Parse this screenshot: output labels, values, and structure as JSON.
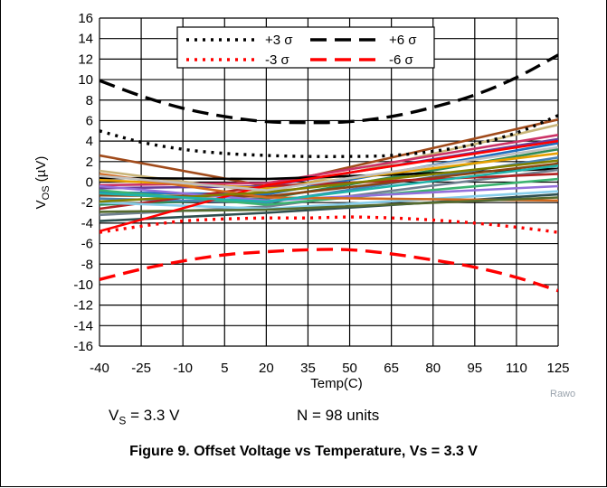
{
  "chart_data": {
    "type": "line",
    "xlabel": "Temp(C)",
    "ylabel": "V",
    "ylabel_sub": "OS",
    "ylabel_unit": " (µV)",
    "x_ticks": [
      -40,
      -25,
      -10,
      5,
      20,
      35,
      50,
      65,
      80,
      95,
      110,
      125
    ],
    "y_ticks": [
      16,
      14,
      12,
      10,
      8,
      6,
      4,
      2,
      0,
      -2,
      -4,
      -6,
      -8,
      -10,
      -12,
      -14,
      -16
    ],
    "xlim": [
      -40,
      125
    ],
    "ylim": [
      -16,
      16
    ],
    "grid": true,
    "legend_position": "top-center",
    "sigma_series": [
      {
        "name": "+3 σ",
        "color": "#000000",
        "style": "dotted",
        "points": [
          [
            -40,
            5.0
          ],
          [
            -25,
            3.9
          ],
          [
            -10,
            3.2
          ],
          [
            5,
            2.8
          ],
          [
            20,
            2.6
          ],
          [
            35,
            2.5
          ],
          [
            50,
            2.5
          ],
          [
            65,
            2.6
          ],
          [
            80,
            3.0
          ],
          [
            95,
            3.7
          ],
          [
            110,
            4.8
          ],
          [
            125,
            6.5
          ]
        ]
      },
      {
        "name": "+6 σ",
        "color": "#000000",
        "style": "dashed",
        "points": [
          [
            -40,
            9.9
          ],
          [
            -25,
            8.4
          ],
          [
            -10,
            7.2
          ],
          [
            5,
            6.4
          ],
          [
            20,
            5.9
          ],
          [
            35,
            5.8
          ],
          [
            50,
            5.9
          ],
          [
            65,
            6.4
          ],
          [
            80,
            7.3
          ],
          [
            95,
            8.5
          ],
          [
            110,
            10.2
          ],
          [
            125,
            12.4
          ]
        ]
      },
      {
        "name": "-3 σ",
        "color": "#ff0000",
        "style": "dotted",
        "points": [
          [
            -40,
            -4.9
          ],
          [
            -25,
            -4.3
          ],
          [
            -10,
            -3.8
          ],
          [
            5,
            -3.6
          ],
          [
            20,
            -3.5
          ],
          [
            35,
            -3.5
          ],
          [
            50,
            -3.4
          ],
          [
            65,
            -3.5
          ],
          [
            80,
            -3.7
          ],
          [
            95,
            -4.0
          ],
          [
            110,
            -4.4
          ],
          [
            125,
            -4.9
          ]
        ]
      },
      {
        "name": "-6 σ",
        "color": "#ff0000",
        "style": "dashed",
        "points": [
          [
            -40,
            -9.5
          ],
          [
            -25,
            -8.5
          ],
          [
            -10,
            -7.7
          ],
          [
            5,
            -7.1
          ],
          [
            20,
            -6.8
          ],
          [
            35,
            -6.6
          ],
          [
            50,
            -6.6
          ],
          [
            65,
            -7.0
          ],
          [
            80,
            -7.6
          ],
          [
            95,
            -8.3
          ],
          [
            110,
            -9.3
          ],
          [
            125,
            -10.6
          ]
        ]
      }
    ],
    "unit_series": [
      {
        "color": "#a04a1a",
        "points": [
          [
            -40,
            2.6
          ],
          [
            20,
            -0.4
          ],
          [
            125,
            6.1
          ]
        ]
      },
      {
        "color": "#c8b478",
        "points": [
          [
            -40,
            1.1
          ],
          [
            20,
            -1.0
          ],
          [
            125,
            5.6
          ]
        ]
      },
      {
        "color": "#cc3366",
        "points": [
          [
            -40,
            -0.3
          ],
          [
            20,
            -0.1
          ],
          [
            125,
            4.6
          ]
        ]
      },
      {
        "color": "#6a3d9a",
        "points": [
          [
            -40,
            -0.6
          ],
          [
            20,
            -0.4
          ],
          [
            125,
            4.2
          ]
        ]
      },
      {
        "color": "#1f6fbf",
        "points": [
          [
            -40,
            -1.0
          ],
          [
            20,
            -1.2
          ],
          [
            125,
            3.8
          ]
        ]
      },
      {
        "color": "#2e8b57",
        "points": [
          [
            -40,
            -2.2
          ],
          [
            20,
            -1.6
          ],
          [
            125,
            3.2
          ]
        ]
      },
      {
        "color": "#000000",
        "points": [
          [
            -40,
            0.4
          ],
          [
            20,
            0.3
          ],
          [
            125,
            1.3
          ]
        ]
      },
      {
        "color": "#e6a000",
        "points": [
          [
            -40,
            0.2
          ],
          [
            20,
            -0.6
          ],
          [
            125,
            2.8
          ]
        ]
      },
      {
        "color": "#4682b4",
        "points": [
          [
            -40,
            -1.6
          ],
          [
            20,
            -2.0
          ],
          [
            125,
            2.4
          ]
        ]
      },
      {
        "color": "#8b4513",
        "points": [
          [
            -40,
            -1.3
          ],
          [
            20,
            -1.4
          ],
          [
            125,
            1.8
          ]
        ]
      },
      {
        "color": "#708090",
        "points": [
          [
            -40,
            -3.2
          ],
          [
            20,
            -2.4
          ],
          [
            125,
            1.2
          ]
        ]
      },
      {
        "color": "#b22222",
        "points": [
          [
            -40,
            -2.6
          ],
          [
            20,
            -0.4
          ],
          [
            125,
            0.8
          ]
        ]
      },
      {
        "color": "#3cb371",
        "points": [
          [
            -40,
            -0.8
          ],
          [
            20,
            -2.2
          ],
          [
            125,
            0.3
          ]
        ]
      },
      {
        "color": "#9370db",
        "points": [
          [
            -40,
            -0.4
          ],
          [
            20,
            -1.8
          ],
          [
            125,
            -0.4
          ]
        ]
      },
      {
        "color": "#2f4f4f",
        "points": [
          [
            -40,
            -3.8
          ],
          [
            20,
            -3.0
          ],
          [
            125,
            -1.2
          ]
        ]
      },
      {
        "color": "#87ceeb",
        "points": [
          [
            -40,
            -2.0
          ],
          [
            20,
            -2.6
          ],
          [
            125,
            -0.9
          ]
        ]
      },
      {
        "color": "#d2691e",
        "points": [
          [
            -40,
            0.8
          ],
          [
            20,
            -1.5
          ],
          [
            125,
            -1.8
          ]
        ]
      },
      {
        "color": "#556b2f",
        "points": [
          [
            -40,
            -2.9
          ],
          [
            20,
            -2.7
          ],
          [
            125,
            -1.5
          ]
        ]
      },
      {
        "color": "#ff0000",
        "points": [
          [
            -40,
            -4.8
          ],
          [
            20,
            -0.3
          ],
          [
            125,
            4.0
          ]
        ]
      },
      {
        "color": "#808000",
        "points": [
          [
            -40,
            -1.9
          ],
          [
            20,
            -1.0
          ],
          [
            125,
            2.1
          ]
        ]
      },
      {
        "color": "#c0c0c0",
        "points": [
          [
            -40,
            0.6
          ],
          [
            20,
            -0.8
          ],
          [
            125,
            3.4
          ]
        ]
      },
      {
        "color": "#20b2aa",
        "points": [
          [
            -40,
            -1.1
          ],
          [
            20,
            -1.9
          ],
          [
            125,
            1.6
          ]
        ]
      }
    ]
  },
  "conditions": {
    "vs_main": "V",
    "vs_sub": "S",
    "vs_value": " = 3.3 V",
    "units": "N = 98 units"
  },
  "watermark": "Rawo",
  "caption": "Figure 9. Offset Voltage vs Temperature, Vs = 3.3 V"
}
